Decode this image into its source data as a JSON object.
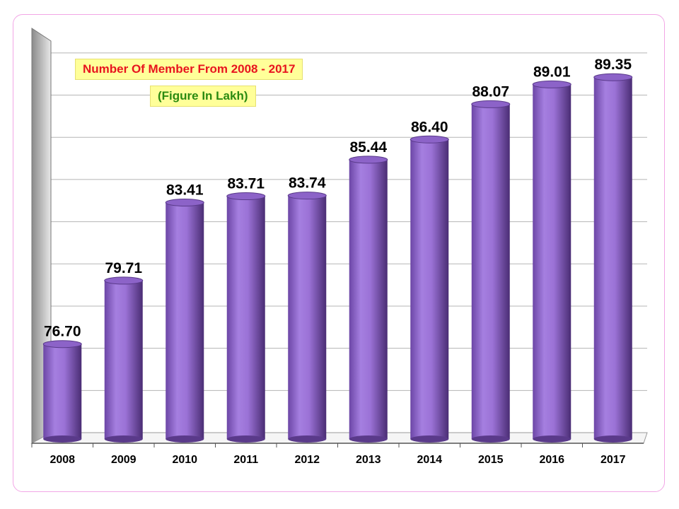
{
  "chart_data": {
    "type": "bar",
    "title": "Number Of Member From 2008 - 2017",
    "subtitle": "(Figure In Lakh)",
    "categories": [
      "2008",
      "2009",
      "2010",
      "2011",
      "2012",
      "2013",
      "2014",
      "2015",
      "2016",
      "2017"
    ],
    "values": [
      76.7,
      79.71,
      83.41,
      83.71,
      83.74,
      85.44,
      86.4,
      88.07,
      89.01,
      89.35
    ],
    "value_labels": [
      "76.70",
      "79.71",
      "83.41",
      "83.71",
      "83.74",
      "85.44",
      "86.40",
      "88.07",
      "89.01",
      "89.35"
    ],
    "xlabel": "",
    "ylabel": "",
    "ylim": [
      72,
      91
    ],
    "grid": true,
    "legend": "none",
    "colors": {
      "bar": "#9b72d6",
      "bar_dark": "#4a2d74",
      "title_text": "#e8141e",
      "subtitle_text": "#2a8a10",
      "box_fill": "#ffff99",
      "frame": "#f2a6e6"
    }
  }
}
